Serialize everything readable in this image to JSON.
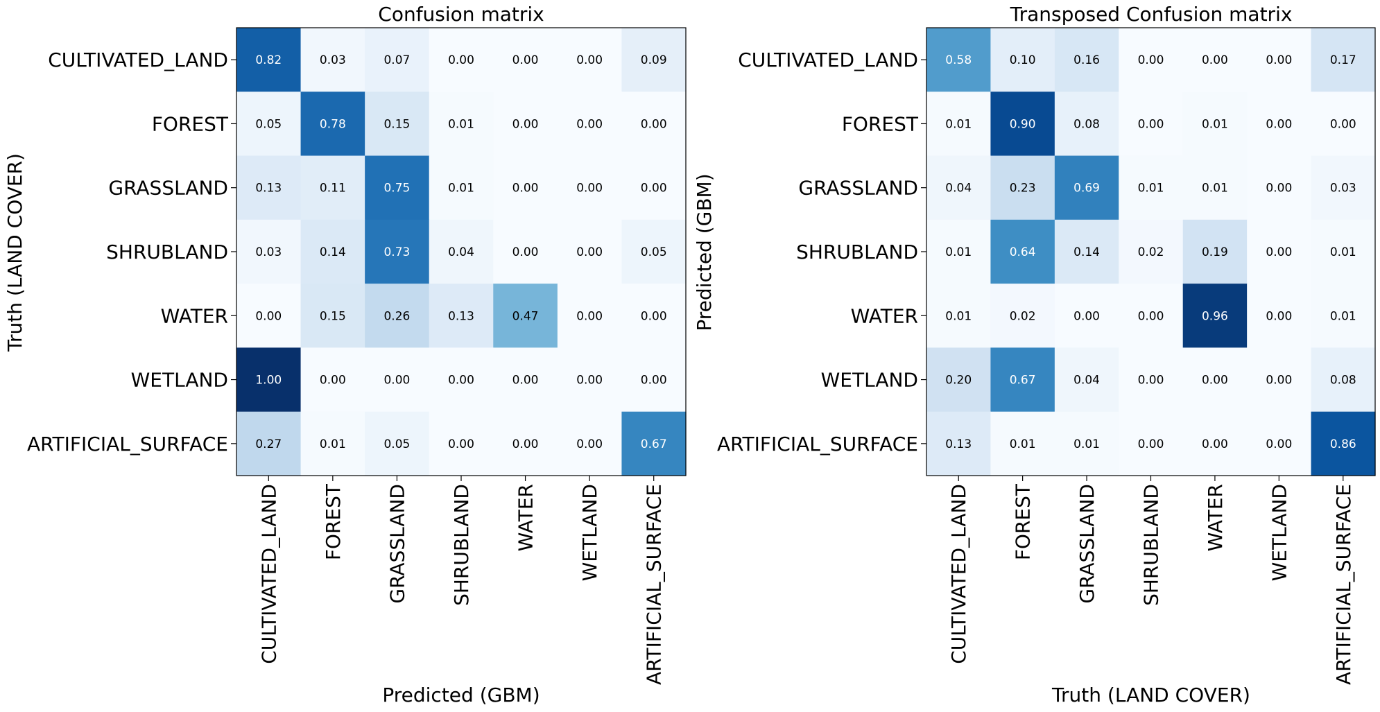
{
  "chart_data": [
    {
      "type": "heatmap",
      "title": "Confusion matrix",
      "xlabel": "Predicted (GBM)",
      "ylabel": "Truth (LAND COVER)",
      "x_categories": [
        "CULTIVATED_LAND",
        "FOREST",
        "GRASSLAND",
        "SHRUBLAND",
        "WATER",
        "WETLAND",
        "ARTIFICIAL_SURFACE"
      ],
      "y_categories": [
        "CULTIVATED_LAND",
        "FOREST",
        "GRASSLAND",
        "SHRUBLAND",
        "WATER",
        "WETLAND",
        "ARTIFICIAL_SURFACE"
      ],
      "values": [
        [
          0.82,
          0.03,
          0.07,
          0.0,
          0.0,
          0.0,
          0.09
        ],
        [
          0.05,
          0.78,
          0.15,
          0.01,
          0.0,
          0.0,
          0.0
        ],
        [
          0.13,
          0.11,
          0.75,
          0.01,
          0.0,
          0.0,
          0.0
        ],
        [
          0.03,
          0.14,
          0.73,
          0.04,
          0.0,
          0.0,
          0.05
        ],
        [
          0.0,
          0.15,
          0.26,
          0.13,
          0.47,
          0.0,
          0.0
        ],
        [
          1.0,
          0.0,
          0.0,
          0.0,
          0.0,
          0.0,
          0.0
        ],
        [
          0.27,
          0.01,
          0.05,
          0.0,
          0.0,
          0.0,
          0.67
        ]
      ],
      "colormap": "Blues",
      "value_range": [
        0,
        1
      ]
    },
    {
      "type": "heatmap",
      "title": "Transposed Confusion matrix",
      "xlabel": "Truth (LAND COVER)",
      "ylabel": "Predicted (GBM)",
      "x_categories": [
        "CULTIVATED_LAND",
        "FOREST",
        "GRASSLAND",
        "SHRUBLAND",
        "WATER",
        "WETLAND",
        "ARTIFICIAL_SURFACE"
      ],
      "y_categories": [
        "CULTIVATED_LAND",
        "FOREST",
        "GRASSLAND",
        "SHRUBLAND",
        "WATER",
        "WETLAND",
        "ARTIFICIAL_SURFACE"
      ],
      "values": [
        [
          0.58,
          0.1,
          0.16,
          0.0,
          0.0,
          0.0,
          0.17
        ],
        [
          0.01,
          0.9,
          0.08,
          0.0,
          0.01,
          0.0,
          0.0
        ],
        [
          0.04,
          0.23,
          0.69,
          0.01,
          0.01,
          0.0,
          0.03
        ],
        [
          0.01,
          0.64,
          0.14,
          0.02,
          0.19,
          0.0,
          0.01
        ],
        [
          0.01,
          0.02,
          0.0,
          0.0,
          0.96,
          0.0,
          0.01
        ],
        [
          0.2,
          0.67,
          0.04,
          0.0,
          0.0,
          0.0,
          0.08
        ],
        [
          0.13,
          0.01,
          0.01,
          0.0,
          0.0,
          0.0,
          0.86
        ]
      ],
      "colormap": "Blues",
      "value_range": [
        0,
        1
      ]
    }
  ],
  "colors": {
    "blues_low": "#f7fbff",
    "blues_high": "#08306b",
    "text_dark": "#000000",
    "text_light": "#ffffff"
  }
}
